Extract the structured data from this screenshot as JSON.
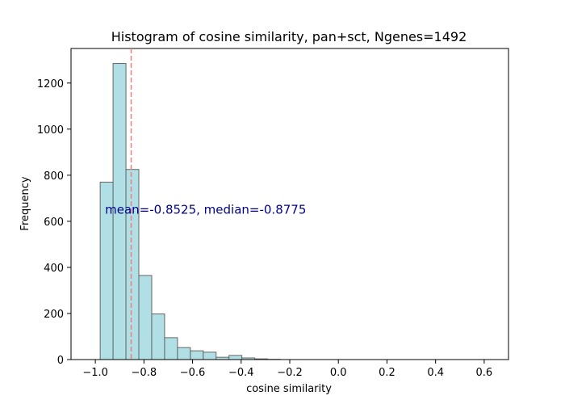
{
  "chart_data": {
    "type": "bar",
    "title": "Histogram of cosine similarity, pan+sct, Ngenes=1492",
    "xlabel": "cosine similarity",
    "ylabel": "Frequency",
    "xlim": [
      -1.1,
      0.7
    ],
    "ylim": [
      0,
      1350
    ],
    "xticks": [
      -1.0,
      -0.8,
      -0.6,
      -0.4,
      -0.2,
      0.0,
      0.2,
      0.4,
      0.6
    ],
    "xtick_labels": [
      "−1.0",
      "−0.8",
      "−0.6",
      "−0.4",
      "−0.2",
      "0.0",
      "0.2",
      "0.4",
      "0.6"
    ],
    "yticks": [
      0,
      200,
      400,
      600,
      800,
      1000,
      1200
    ],
    "ytick_labels": [
      "0",
      "200",
      "400",
      "600",
      "800",
      "1000",
      "1200"
    ],
    "bin_edges": [
      -0.98,
      -0.927,
      -0.874,
      -0.821,
      -0.768,
      -0.715,
      -0.662,
      -0.609,
      -0.556,
      -0.503,
      -0.45,
      -0.397,
      -0.344,
      -0.291,
      -0.238,
      -0.185
    ],
    "counts": [
      770,
      1285,
      825,
      365,
      198,
      95,
      52,
      38,
      32,
      10,
      18,
      7,
      3,
      1,
      0
    ],
    "mean_line_x": -0.8525,
    "annotation": {
      "text": "mean=-0.8525, median=-0.8775",
      "x": -0.96,
      "y": 650
    },
    "colors": {
      "bar_fill": "#b0dfe5",
      "bar_edge": "#666666",
      "mean_line": "#f08080",
      "annotation": "#00008b"
    },
    "grid": false,
    "legend": "none"
  }
}
